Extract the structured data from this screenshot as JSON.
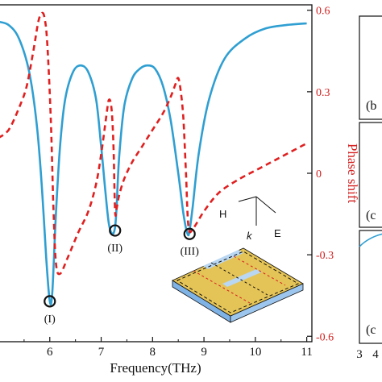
{
  "chart_data": {
    "type": "line",
    "xlabel": "Frequency(THz)",
    "ylabel_right": "Phase shift",
    "xlim": [
      5.0,
      11.1
    ],
    "y_left_lim": [
      0.0,
      1.0
    ],
    "y_right_lim": [
      -0.62,
      0.62
    ],
    "x_ticks": [
      6,
      7,
      8,
      9,
      10,
      11
    ],
    "x_tick_labels": [
      "6",
      "7",
      "8",
      "9",
      "10",
      "11"
    ],
    "y_right_ticks": [
      0.6,
      0.3,
      0,
      -0.3,
      -0.6
    ],
    "y_right_tick_labels": [
      "0.6",
      "0.3",
      "0",
      "-0.3",
      "-0.6"
    ],
    "grid": false,
    "series": [
      {
        "axis": "left",
        "color": "#2f9fd2",
        "style": "solid",
        "x": [
          5.0,
          5.2,
          5.4,
          5.6,
          5.75,
          5.85,
          5.93,
          6.0,
          6.05,
          6.12,
          6.2,
          6.3,
          6.45,
          6.6,
          6.75,
          6.9,
          7.0,
          7.08,
          7.15,
          7.22,
          7.27,
          7.3,
          7.35,
          7.45,
          7.6,
          7.75,
          7.9,
          8.05,
          8.2,
          8.35,
          8.5,
          8.6,
          8.68,
          8.72,
          8.78,
          8.9,
          9.1,
          9.4,
          9.8,
          10.2,
          10.6,
          11.0
        ],
        "y": [
          0.95,
          0.94,
          0.9,
          0.8,
          0.64,
          0.45,
          0.25,
          0.12,
          0.15,
          0.38,
          0.58,
          0.72,
          0.8,
          0.82,
          0.8,
          0.72,
          0.58,
          0.45,
          0.35,
          0.32,
          0.34,
          0.4,
          0.55,
          0.7,
          0.78,
          0.81,
          0.82,
          0.81,
          0.76,
          0.66,
          0.5,
          0.38,
          0.32,
          0.33,
          0.4,
          0.56,
          0.72,
          0.84,
          0.9,
          0.93,
          0.94,
          0.945
        ]
      },
      {
        "axis": "right",
        "color": "#e02020",
        "style": "dashed",
        "x": [
          5.0,
          5.2,
          5.4,
          5.55,
          5.68,
          5.78,
          5.85,
          5.9,
          5.95,
          6.02,
          6.07,
          6.12,
          6.2,
          6.35,
          6.55,
          6.75,
          6.9,
          7.0,
          7.1,
          7.15,
          7.2,
          7.24,
          7.27,
          7.3,
          7.35,
          7.45,
          7.6,
          7.8,
          8.0,
          8.2,
          8.35,
          8.45,
          8.5,
          8.55,
          8.6,
          8.65,
          8.7,
          8.8,
          9.0,
          9.3,
          9.7,
          10.1,
          10.5,
          11.0
        ],
        "y": [
          0.13,
          0.16,
          0.24,
          0.32,
          0.45,
          0.56,
          0.59,
          0.57,
          0.48,
          0.2,
          -0.12,
          -0.33,
          -0.37,
          -0.31,
          -0.22,
          -0.14,
          -0.04,
          0.07,
          0.21,
          0.27,
          0.24,
          0.1,
          -0.14,
          -0.13,
          -0.08,
          -0.02,
          0.04,
          0.1,
          0.16,
          0.22,
          0.28,
          0.33,
          0.35,
          0.3,
          0.2,
          0.0,
          -0.2,
          -0.2,
          -0.14,
          -0.07,
          -0.02,
          0.02,
          0.06,
          0.11
        ]
      }
    ],
    "annotations": [
      {
        "text": "(I)",
        "x": 6.0,
        "y": 0.12
      },
      {
        "text": "(II)",
        "x": 7.27,
        "y": 0.33
      },
      {
        "text": "(III)",
        "x": 8.72,
        "y": 0.32
      }
    ],
    "inset_labels": {
      "h": "H",
      "e": "E",
      "k": "k"
    },
    "side_panel_labels": [
      "(b",
      "(c",
      "(c"
    ],
    "side_panel_ticks": [
      "3",
      "4"
    ]
  }
}
